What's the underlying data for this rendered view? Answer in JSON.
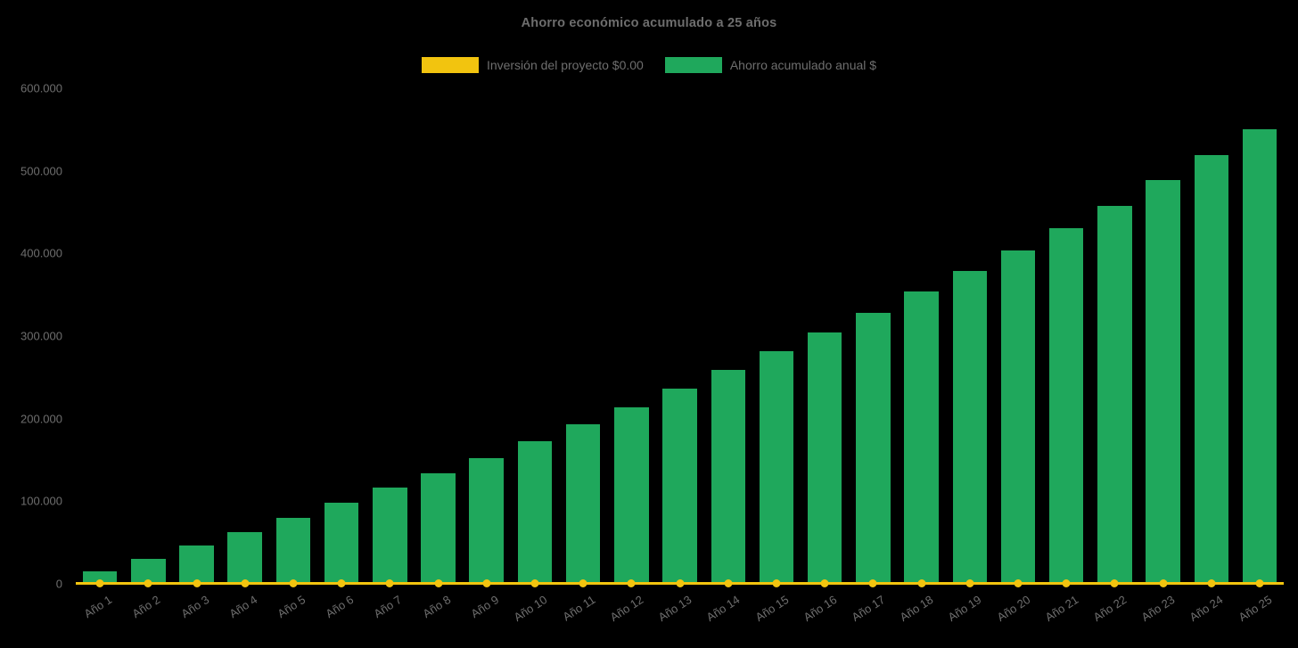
{
  "chart_data": {
    "type": "bar",
    "title": "Ahorro económico acumulado a 25 años",
    "xlabel": "",
    "ylabel": "",
    "ylim": [
      0,
      600000
    ],
    "grid": false,
    "legend_position": "top",
    "background_color": "#000000",
    "text_color": "#6e6e6e",
    "categories": [
      "Año 1",
      "Año 2",
      "Año 3",
      "Año 4",
      "Año 5",
      "Año 6",
      "Año 7",
      "Año 8",
      "Año 9",
      "Año 10",
      "Año 11",
      "Año 12",
      "Año 13",
      "Año 14",
      "Año 15",
      "Año 16",
      "Año 17",
      "Año 18",
      "Año 19",
      "Año 20",
      "Año 21",
      "Año 22",
      "Año 23",
      "Año 24",
      "Año 25"
    ],
    "series": [
      {
        "name": "Inversión del proyecto $0.00",
        "type": "line",
        "color": "#F2C40F",
        "values": [
          0,
          0,
          0,
          0,
          0,
          0,
          0,
          0,
          0,
          0,
          0,
          0,
          0,
          0,
          0,
          0,
          0,
          0,
          0,
          0,
          0,
          0,
          0,
          0,
          0
        ]
      },
      {
        "name": "Ahorro acumulado anual $",
        "type": "bar",
        "color": "#1FA85C",
        "values": [
          15000,
          30300,
          46400,
          62700,
          80000,
          98000,
          116500,
          133500,
          152500,
          172500,
          193000,
          214000,
          236000,
          258500,
          281500,
          304500,
          328000,
          354000,
          379000,
          404000,
          430500,
          457500,
          488500,
          519000,
          550000
        ]
      }
    ],
    "y_ticks": [
      {
        "value": 0,
        "label": "0"
      },
      {
        "value": 100000,
        "label": "100.000"
      },
      {
        "value": 200000,
        "label": "200.000"
      },
      {
        "value": 300000,
        "label": "300.000"
      },
      {
        "value": 400000,
        "label": "400.000"
      },
      {
        "value": 500000,
        "label": "500.000"
      },
      {
        "value": 600000,
        "label": "600.000"
      }
    ]
  }
}
